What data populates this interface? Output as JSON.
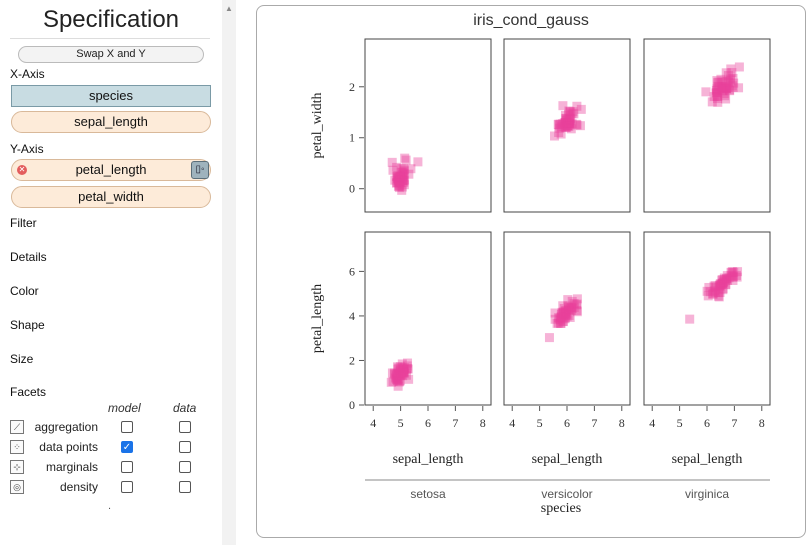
{
  "spec": {
    "title": "Specification",
    "swap_label": "Swap X and Y",
    "x_axis_label": "X-Axis",
    "x_fields": [
      "species",
      "sepal_length"
    ],
    "y_axis_label": "Y-Axis",
    "y_fields": [
      "petal_length",
      "petal_width"
    ],
    "sections": [
      "Filter",
      "Details",
      "Color",
      "Shape",
      "Size",
      "Facets"
    ],
    "layers_header": {
      "model": "model",
      "data": "data"
    },
    "layers": [
      {
        "label": "aggregation",
        "icon": "aggregation-icon",
        "model": false,
        "data": false
      },
      {
        "label": "data points",
        "icon": "data-points-icon",
        "model": true,
        "data": false
      },
      {
        "label": "marginals",
        "icon": "marginals-icon",
        "model": false,
        "data": false
      },
      {
        "label": "density",
        "icon": "density-icon",
        "model": false,
        "data": false
      }
    ],
    "footer_dot": "."
  },
  "chart_data": {
    "type": "scatter",
    "title": "iris_cond_gauss",
    "marker_color": "#e8409a",
    "x_field": "sepal_length",
    "col_field": "species",
    "columns": [
      "setosa",
      "versicolor",
      "virginica"
    ],
    "rows": [
      {
        "name": "petal_width",
        "ylim": [
          -0.3,
          2.8
        ],
        "ticks": [
          0,
          1,
          2
        ],
        "clusters": [
          {
            "x": 5.0,
            "y": 0.25,
            "sx": 0.35,
            "sy": 0.25,
            "n": 50
          },
          {
            "x": 5.95,
            "y": 1.3,
            "sx": 0.5,
            "sy": 0.2,
            "n": 50
          },
          {
            "x": 6.6,
            "y": 2.0,
            "sx": 0.65,
            "sy": 0.27,
            "n": 50
          }
        ]
      },
      {
        "name": "petal_length",
        "ylim": [
          0,
          7.5
        ],
        "ticks": [
          0,
          2,
          4,
          6
        ],
        "clusters": [
          {
            "x": 5.0,
            "y": 1.46,
            "sx": 0.35,
            "sy": 0.4,
            "n": 50,
            "rho": 0.5
          },
          {
            "x": 5.95,
            "y": 4.2,
            "sx": 0.5,
            "sy": 0.45,
            "n": 50,
            "rho": 0.8
          },
          {
            "x": 6.6,
            "y": 5.5,
            "sx": 0.65,
            "sy": 0.55,
            "n": 50,
            "rho": 0.85
          }
        ]
      }
    ],
    "xlim": [
      3.7,
      8.3
    ],
    "xticks": [
      4,
      5,
      6,
      7,
      8
    ],
    "xlabel": "sepal_length",
    "col_axis_label": "species",
    "grid": false
  }
}
